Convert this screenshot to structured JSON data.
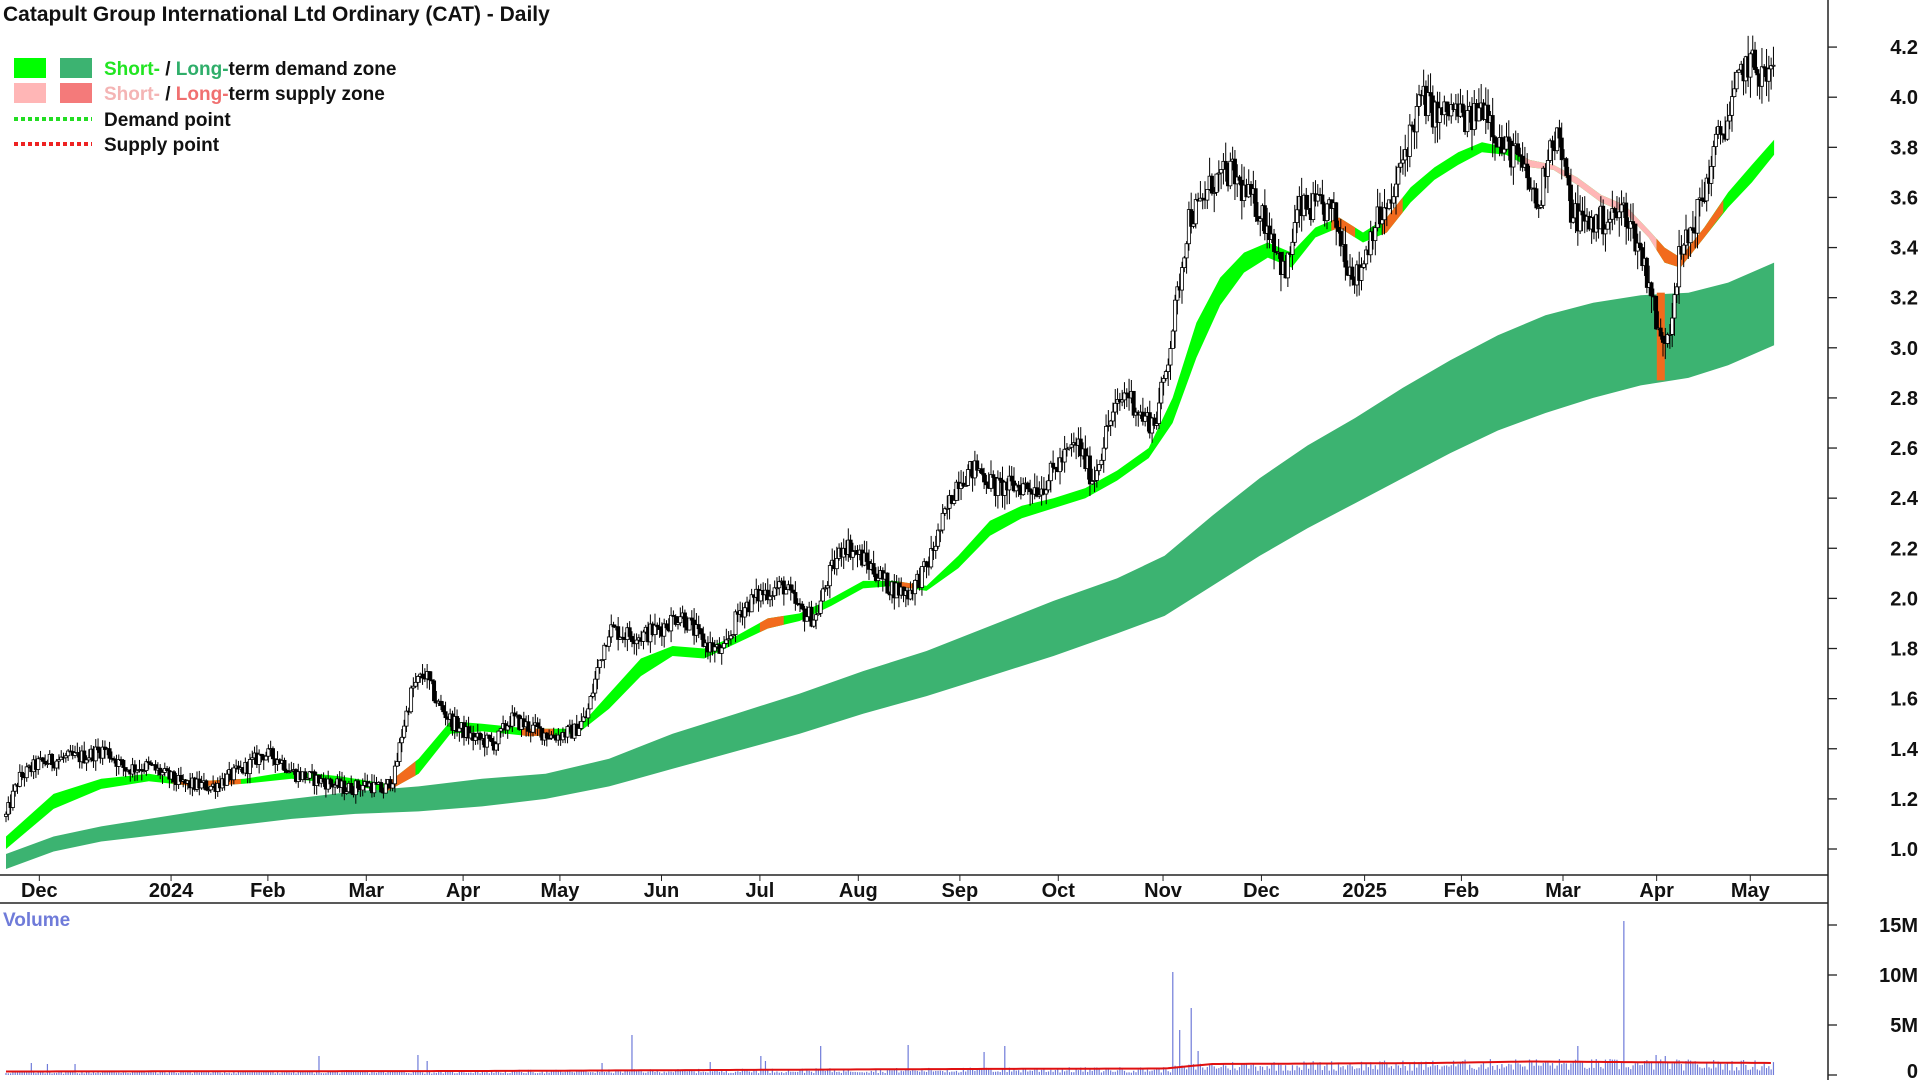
{
  "chart_data": [
    {
      "type": "candlestick",
      "title": "Catapult Group International Ltd Ordinary (CAT) - Daily",
      "ylim": [
        0.9,
        4.25
      ],
      "y_ticks": [
        "1.0",
        "1.2",
        "1.4",
        "1.6",
        "1.8",
        "2.0",
        "2.2",
        "2.4",
        "2.6",
        "2.8",
        "3.0",
        "3.2",
        "3.4",
        "3.6",
        "3.8",
        "4.0",
        "4.2"
      ],
      "x_tick_labels": [
        "Dec",
        "2024",
        "Feb",
        "Mar",
        "Apr",
        "May",
        "Jun",
        "Jul",
        "Aug",
        "Sep",
        "Oct",
        "Nov",
        "Dec",
        "2025",
        "Feb",
        "Mar",
        "Apr",
        "May"
      ],
      "x_tick_days": [
        21,
        104,
        165,
        227,
        288,
        349,
        413,
        475,
        537,
        601,
        663,
        729,
        791,
        856,
        917,
        981,
        1040,
        1099
      ],
      "grid": false,
      "legend": {
        "position": "top-left",
        "entries": [
          {
            "parts": [
              {
                "text": "Short-",
                "color": "#22e522"
              },
              {
                "text": " / ",
                "color": "#111111"
              },
              {
                "text": "Long-",
                "color": "#2fae6a"
              },
              {
                "text": "term demand zone",
                "color": "#111111"
              }
            ],
            "swatches": [
              "#00ff00",
              "#3cb371"
            ]
          },
          {
            "parts": [
              {
                "text": "Short-",
                "color": "#f4b4b4"
              },
              {
                "text": " / ",
                "color": "#111111"
              },
              {
                "text": "Long-",
                "color": "#f07070"
              },
              {
                "text": "term supply zone",
                "color": "#111111"
              }
            ],
            "swatches": [
              "#ffb6b6",
              "#f47a7a"
            ]
          },
          {
            "parts": [
              {
                "text": "Demand point",
                "color": "#111111"
              }
            ],
            "line": "#22dd22"
          },
          {
            "parts": [
              {
                "text": "Supply point",
                "color": "#111111"
              }
            ],
            "line": "#ee2222"
          }
        ]
      },
      "price_path": [
        [
          0,
          1.13
        ],
        [
          8,
          1.28
        ],
        [
          20,
          1.34
        ],
        [
          35,
          1.36
        ],
        [
          50,
          1.37
        ],
        [
          62,
          1.4
        ],
        [
          75,
          1.32
        ],
        [
          90,
          1.33
        ],
        [
          110,
          1.26
        ],
        [
          130,
          1.25
        ],
        [
          150,
          1.32
        ],
        [
          162,
          1.38
        ],
        [
          172,
          1.36
        ],
        [
          182,
          1.3
        ],
        [
          200,
          1.27
        ],
        [
          215,
          1.24
        ],
        [
          228,
          1.26
        ],
        [
          238,
          1.23
        ],
        [
          245,
          1.3
        ],
        [
          250,
          1.48
        ],
        [
          256,
          1.64
        ],
        [
          264,
          1.7
        ],
        [
          272,
          1.58
        ],
        [
          282,
          1.5
        ],
        [
          295,
          1.44
        ],
        [
          308,
          1.42
        ],
        [
          318,
          1.52
        ],
        [
          332,
          1.48
        ],
        [
          345,
          1.45
        ],
        [
          358,
          1.47
        ],
        [
          366,
          1.53
        ],
        [
          374,
          1.75
        ],
        [
          380,
          1.88
        ],
        [
          388,
          1.86
        ],
        [
          400,
          1.85
        ],
        [
          412,
          1.88
        ],
        [
          425,
          1.94
        ],
        [
          440,
          1.82
        ],
        [
          452,
          1.78
        ],
        [
          462,
          1.95
        ],
        [
          476,
          2.02
        ],
        [
          490,
          2.05
        ],
        [
          500,
          1.95
        ],
        [
          510,
          1.92
        ],
        [
          518,
          2.08
        ],
        [
          528,
          2.22
        ],
        [
          536,
          2.18
        ],
        [
          546,
          2.12
        ],
        [
          556,
          2.05
        ],
        [
          568,
          2.02
        ],
        [
          580,
          2.12
        ],
        [
          590,
          2.3
        ],
        [
          600,
          2.48
        ],
        [
          612,
          2.52
        ],
        [
          624,
          2.44
        ],
        [
          640,
          2.45
        ],
        [
          652,
          2.44
        ],
        [
          665,
          2.55
        ],
        [
          675,
          2.62
        ],
        [
          685,
          2.47
        ],
        [
          695,
          2.7
        ],
        [
          706,
          2.83
        ],
        [
          716,
          2.72
        ],
        [
          724,
          2.7
        ],
        [
          730,
          2.88
        ],
        [
          738,
          3.2
        ],
        [
          745,
          3.52
        ],
        [
          752,
          3.56
        ],
        [
          760,
          3.66
        ],
        [
          772,
          3.7
        ],
        [
          780,
          3.62
        ],
        [
          790,
          3.55
        ],
        [
          798,
          3.45
        ],
        [
          806,
          3.28
        ],
        [
          814,
          3.55
        ],
        [
          826,
          3.56
        ],
        [
          836,
          3.54
        ],
        [
          846,
          3.33
        ],
        [
          852,
          3.28
        ],
        [
          862,
          3.5
        ],
        [
          872,
          3.55
        ],
        [
          882,
          3.8
        ],
        [
          892,
          4.0
        ],
        [
          902,
          3.92
        ],
        [
          912,
          3.95
        ],
        [
          922,
          3.9
        ],
        [
          932,
          3.98
        ],
        [
          942,
          3.8
        ],
        [
          950,
          3.78
        ],
        [
          958,
          3.68
        ],
        [
          966,
          3.55
        ],
        [
          972,
          3.82
        ],
        [
          978,
          3.85
        ],
        [
          986,
          3.55
        ],
        [
          994,
          3.5
        ],
        [
          1002,
          3.5
        ],
        [
          1012,
          3.52
        ],
        [
          1020,
          3.55
        ],
        [
          1030,
          3.38
        ],
        [
          1036,
          3.25
        ],
        [
          1042,
          3.02
        ],
        [
          1048,
          3.08
        ],
        [
          1054,
          3.35
        ],
        [
          1062,
          3.47
        ],
        [
          1070,
          3.62
        ],
        [
          1078,
          3.82
        ],
        [
          1086,
          3.93
        ],
        [
          1094,
          4.12
        ],
        [
          1100,
          4.13
        ],
        [
          1108,
          4.08
        ],
        [
          1114,
          4.1
        ]
      ],
      "short_term_zone": [
        [
          0,
          1.0,
          1.05
        ],
        [
          30,
          1.16,
          1.22
        ],
        [
          60,
          1.24,
          1.28
        ],
        [
          90,
          1.27,
          1.3
        ],
        [
          120,
          1.25,
          1.27
        ],
        [
          150,
          1.26,
          1.28
        ],
        [
          180,
          1.28,
          1.31
        ],
        [
          210,
          1.26,
          1.29
        ],
        [
          240,
          1.23,
          1.26
        ],
        [
          260,
          1.3,
          1.36
        ],
        [
          280,
          1.46,
          1.51
        ],
        [
          300,
          1.47,
          1.5
        ],
        [
          330,
          1.45,
          1.48
        ],
        [
          360,
          1.46,
          1.48
        ],
        [
          380,
          1.56,
          1.62
        ],
        [
          400,
          1.69,
          1.76
        ],
        [
          420,
          1.77,
          1.81
        ],
        [
          440,
          1.76,
          1.8
        ],
        [
          460,
          1.82,
          1.85
        ],
        [
          480,
          1.88,
          1.92
        ],
        [
          500,
          1.91,
          1.94
        ],
        [
          520,
          1.97,
          2.0
        ],
        [
          540,
          2.04,
          2.07
        ],
        [
          560,
          2.05,
          2.07
        ],
        [
          580,
          2.03,
          2.05
        ],
        [
          600,
          2.12,
          2.17
        ],
        [
          620,
          2.25,
          2.31
        ],
        [
          640,
          2.32,
          2.37
        ],
        [
          660,
          2.36,
          2.4
        ],
        [
          680,
          2.4,
          2.44
        ],
        [
          700,
          2.47,
          2.51
        ],
        [
          720,
          2.56,
          2.6
        ],
        [
          735,
          2.7,
          2.8
        ],
        [
          750,
          2.96,
          3.1
        ],
        [
          765,
          3.17,
          3.28
        ],
        [
          780,
          3.3,
          3.38
        ],
        [
          795,
          3.36,
          3.42
        ],
        [
          810,
          3.32,
          3.38
        ],
        [
          825,
          3.44,
          3.48
        ],
        [
          840,
          3.48,
          3.52
        ],
        [
          855,
          3.42,
          3.46
        ],
        [
          870,
          3.46,
          3.52
        ],
        [
          885,
          3.58,
          3.64
        ],
        [
          900,
          3.67,
          3.72
        ],
        [
          915,
          3.73,
          3.78
        ],
        [
          930,
          3.78,
          3.82
        ],
        [
          945,
          3.77,
          3.8
        ],
        [
          960,
          3.72,
          3.75
        ],
        [
          975,
          3.71,
          3.73
        ],
        [
          990,
          3.65,
          3.68
        ],
        [
          1005,
          3.58,
          3.61
        ],
        [
          1020,
          3.54,
          3.57
        ],
        [
          1035,
          3.44,
          3.47
        ],
        [
          1045,
          3.34,
          3.4
        ],
        [
          1055,
          3.32,
          3.36
        ],
        [
          1070,
          3.44,
          3.48
        ],
        [
          1085,
          3.56,
          3.62
        ],
        [
          1100,
          3.66,
          3.73
        ],
        [
          1114,
          3.77,
          3.83
        ]
      ],
      "long_term_zone": [
        [
          0,
          0.98,
          0.92
        ],
        [
          30,
          1.05,
          0.99
        ],
        [
          60,
          1.09,
          1.03
        ],
        [
          100,
          1.13,
          1.06
        ],
        [
          140,
          1.17,
          1.09
        ],
        [
          180,
          1.2,
          1.12
        ],
        [
          220,
          1.23,
          1.14
        ],
        [
          260,
          1.25,
          1.15
        ],
        [
          300,
          1.28,
          1.17
        ],
        [
          340,
          1.3,
          1.2
        ],
        [
          380,
          1.36,
          1.25
        ],
        [
          420,
          1.46,
          1.32
        ],
        [
          460,
          1.54,
          1.39
        ],
        [
          500,
          1.62,
          1.46
        ],
        [
          540,
          1.71,
          1.54
        ],
        [
          580,
          1.79,
          1.61
        ],
        [
          620,
          1.89,
          1.69
        ],
        [
          660,
          1.99,
          1.77
        ],
        [
          700,
          2.08,
          1.86
        ],
        [
          730,
          2.17,
          1.93
        ],
        [
          760,
          2.33,
          2.05
        ],
        [
          790,
          2.48,
          2.17
        ],
        [
          820,
          2.61,
          2.28
        ],
        [
          850,
          2.72,
          2.38
        ],
        [
          880,
          2.84,
          2.48
        ],
        [
          910,
          2.95,
          2.58
        ],
        [
          940,
          3.05,
          2.67
        ],
        [
          970,
          3.13,
          2.74
        ],
        [
          1000,
          3.18,
          2.8
        ],
        [
          1030,
          3.21,
          2.85
        ],
        [
          1060,
          3.22,
          2.88
        ],
        [
          1085,
          3.26,
          2.93
        ],
        [
          1114,
          3.34,
          3.01
        ]
      ],
      "supply_segments": [
        [
          105,
          148
        ],
        [
          240,
          258
        ],
        [
          325,
          345
        ],
        [
          475,
          490
        ],
        [
          563,
          573
        ],
        [
          835,
          850
        ],
        [
          867,
          880
        ],
        [
          955,
          1040
        ]
      ],
      "long_supply_bar": {
        "day": 1042,
        "from": 2.87,
        "to": 3.22
      }
    },
    {
      "type": "bar",
      "title": "Volume",
      "y_ticks": [
        "0",
        "5M",
        "10M",
        "15M"
      ],
      "ylim": [
        0,
        16
      ],
      "spikes": [
        [
          16,
          1.2
        ],
        [
          26,
          1.1
        ],
        [
          44,
          1.1
        ],
        [
          197,
          1.9
        ],
        [
          259,
          2.0
        ],
        [
          265,
          1.4
        ],
        [
          376,
          1.2
        ],
        [
          395,
          4.0
        ],
        [
          444,
          1.3
        ],
        [
          475,
          1.9
        ],
        [
          478,
          1.4
        ],
        [
          513,
          2.9
        ],
        [
          568,
          3.0
        ],
        [
          616,
          2.3
        ],
        [
          630,
          2.9
        ],
        [
          735,
          10.3
        ],
        [
          740,
          4.5
        ],
        [
          747,
          6.7
        ],
        [
          751,
          2.4
        ],
        [
          972,
          1.4
        ],
        [
          991,
          2.9
        ],
        [
          1020,
          15.4
        ],
        [
          1032,
          1.4
        ],
        [
          1040,
          2.0
        ],
        [
          1046,
          1.9
        ]
      ],
      "average_line": [
        [
          0,
          0.35
        ],
        [
          300,
          0.4
        ],
        [
          600,
          0.6
        ],
        [
          730,
          0.65
        ],
        [
          760,
          1.1
        ],
        [
          900,
          1.2
        ],
        [
          960,
          1.35
        ],
        [
          1114,
          1.2
        ]
      ]
    }
  ]
}
